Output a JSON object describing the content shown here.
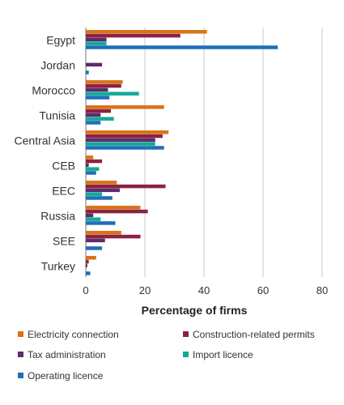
{
  "chart_data": {
    "type": "bar",
    "orientation": "horizontal",
    "categories": [
      "Egypt",
      "Jordan",
      "Morocco",
      "Tunisia",
      "Central Asia",
      "CEB",
      "EEC",
      "Russia",
      "SEE",
      "Turkey"
    ],
    "series": [
      {
        "name": "Electricity connection",
        "color": "#D9731A",
        "values": [
          41,
          0,
          12.5,
          26.5,
          28,
          2.5,
          10.5,
          18.5,
          12,
          3.5
        ]
      },
      {
        "name": "Construction-related permits",
        "color": "#8C2240",
        "values": [
          32,
          0,
          12,
          8.5,
          26,
          5.5,
          27,
          21,
          18.5,
          1
        ]
      },
      {
        "name": "Tax administration",
        "color": "#5E2B6B",
        "values": [
          7,
          5.5,
          7.5,
          5,
          23.5,
          1,
          11.5,
          2.5,
          6.5,
          0.5
        ]
      },
      {
        "name": "Import licence",
        "color": "#14A89A",
        "values": [
          7,
          0,
          18,
          9.5,
          23.5,
          4.5,
          5.5,
          5,
          0,
          0
        ]
      },
      {
        "name": "Operating licence",
        "color": "#1F6FB8",
        "values": [
          65,
          1,
          8,
          5,
          26.5,
          3.5,
          9,
          10,
          5.5,
          1.5
        ]
      }
    ],
    "xlabel": "Percentage of firms",
    "xlim": [
      0,
      80
    ],
    "xticks": [
      0,
      20,
      40,
      60,
      80
    ],
    "grid": true,
    "legend_position": "bottom"
  }
}
